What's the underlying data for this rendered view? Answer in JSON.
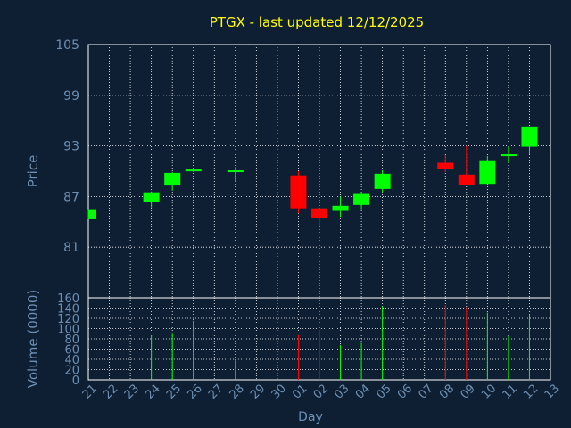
{
  "chart_data": {
    "type": "candlestick",
    "title": "PTGX - last updated 12/12/2025",
    "xlabel": "Day",
    "price_panel": {
      "ylabel": "Price",
      "ylim": [
        75,
        105
      ],
      "yticks": [
        81,
        87,
        93,
        99,
        105
      ],
      "grid": true
    },
    "volume_panel": {
      "ylabel": "Volume (0000)",
      "ylim": [
        0,
        160
      ],
      "yticks": [
        0,
        20,
        40,
        60,
        80,
        100,
        120,
        140,
        160
      ],
      "grid": true
    },
    "x_ticks": [
      "21",
      "22",
      "23",
      "24",
      "25",
      "26",
      "27",
      "28",
      "29",
      "30",
      "01",
      "02",
      "03",
      "04",
      "05",
      "06",
      "07",
      "08",
      "09",
      "10",
      "11",
      "12",
      "13"
    ],
    "candles": [
      {
        "x": "21",
        "open": 84.3,
        "high": 85.5,
        "low": 84.3,
        "close": 85.5,
        "volume": 0
      },
      {
        "x": "24",
        "open": 86.4,
        "high": 87.6,
        "low": 85.7,
        "close": 87.5,
        "volume": 87
      },
      {
        "x": "25",
        "open": 88.3,
        "high": 89.9,
        "low": 87.7,
        "close": 89.8,
        "volume": 90
      },
      {
        "x": "26",
        "open": 90.0,
        "high": 90.4,
        "low": 89.9,
        "close": 90.2,
        "volume": 115
      },
      {
        "x": "28",
        "open": 90.0,
        "high": 90.5,
        "low": 88.8,
        "close": 90.1,
        "volume": 38
      },
      {
        "x": "01",
        "open": 89.5,
        "high": 90.0,
        "low": 85.0,
        "close": 85.6,
        "volume": 87
      },
      {
        "x": "02",
        "open": 85.6,
        "high": 85.6,
        "low": 83.5,
        "close": 84.5,
        "volume": 98
      },
      {
        "x": "03",
        "open": 85.3,
        "high": 87.0,
        "low": 84.6,
        "close": 85.9,
        "volume": 68
      },
      {
        "x": "04",
        "open": 86.0,
        "high": 87.5,
        "low": 85.5,
        "close": 87.3,
        "volume": 72
      },
      {
        "x": "05",
        "open": 87.9,
        "high": 90.1,
        "low": 87.5,
        "close": 89.7,
        "volume": 144
      },
      {
        "x": "08",
        "open": 91.0,
        "high": 91.9,
        "low": 89.9,
        "close": 90.3,
        "volume": 146
      },
      {
        "x": "09",
        "open": 89.6,
        "high": 93.0,
        "low": 88.4,
        "close": 88.4,
        "volume": 142
      },
      {
        "x": "10",
        "open": 88.5,
        "high": 91.8,
        "low": 88.5,
        "close": 91.3,
        "volume": 131
      },
      {
        "x": "11",
        "open": 91.8,
        "high": 92.9,
        "low": 91.0,
        "close": 92.0,
        "volume": 85
      },
      {
        "x": "12",
        "open": 92.9,
        "high": 95.3,
        "low": 92.0,
        "close": 95.3,
        "volume": 128
      }
    ],
    "colors": {
      "background": "#0f1f33",
      "panel": "#0f1f33",
      "grid": "#ffffff",
      "up": "#00ff00",
      "down": "#ff0000",
      "title": "#ffff00",
      "labels": "#6d8fb3"
    }
  }
}
